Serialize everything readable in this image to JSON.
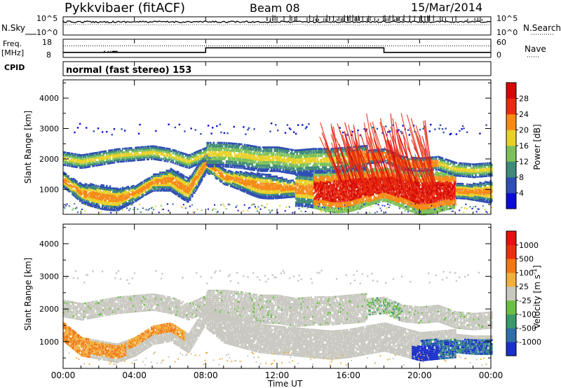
{
  "header": {
    "station": "Pykkvibaer (fitACF)",
    "beam": "Beam 08",
    "date": "15/Mar/2014"
  },
  "noise_panel": {
    "left_label": "N.Sky",
    "left_ticks": [
      "10^5",
      "10^0"
    ],
    "right_ticks": [
      "10^5",
      "10^0"
    ],
    "right_label": "N.Search"
  },
  "freq_panel": {
    "left_label_1": "Freq.",
    "left_label_2": "[MHz]",
    "left_ticks": [
      "18",
      "8"
    ],
    "right_ticks": [
      "60",
      "0"
    ],
    "right_label": "Nave",
    "freq_steps": [
      {
        "t0": 0,
        "t1": 8,
        "value": 10.0
      },
      {
        "t0": 8,
        "t1": 18,
        "value": 12.5
      },
      {
        "t0": 18,
        "t1": 24,
        "value": 10.0
      }
    ],
    "nave_level": 38
  },
  "cpid": {
    "label": "CPID",
    "text": "normal (fast stereo) 153"
  },
  "chart_data": [
    {
      "type": "heatmap",
      "name": "Power",
      "ylabel": "Slant Range [km]",
      "ylim": [
        180,
        4600
      ],
      "yticks": [
        "1000",
        "2000",
        "3000",
        "4000"
      ],
      "colorbar_label": "Power [dB]",
      "colorbar_ticks": [
        "28",
        "24",
        "20",
        "16",
        "12",
        "8",
        "4"
      ],
      "colorbar_colors": [
        "#0b0bd6",
        "#2f4fb4",
        "#3f8a78",
        "#7cc05a",
        "#e8d028",
        "#f58a18",
        "#e82c10",
        "#d40808"
      ],
      "colorbar_range": [
        0,
        32
      ],
      "echo_bands": [
        {
          "label": "lower band",
          "t": [
            0,
            1,
            2,
            3,
            4,
            5,
            6,
            7,
            8,
            9,
            10,
            11,
            12,
            13,
            14,
            15,
            16,
            17,
            18,
            19,
            20,
            21,
            22,
            23,
            24
          ],
          "range": [
            1350,
            900,
            800,
            700,
            900,
            1250,
            1350,
            1000,
            1900,
            1450,
            1300,
            1150,
            1100,
            1050,
            1000,
            950,
            1000,
            1100,
            1200,
            1050,
            900,
            950,
            1000,
            950,
            950
          ]
        },
        {
          "label": "upper band",
          "t": [
            0,
            1,
            2,
            3,
            4,
            5,
            6,
            7,
            8,
            9,
            10,
            11,
            12,
            13,
            14,
            15,
            16,
            17,
            18,
            19,
            20,
            21,
            22,
            23,
            24
          ],
          "range": [
            2050,
            1950,
            2050,
            2150,
            2200,
            2250,
            2150,
            1950,
            2200,
            2200,
            2150,
            2050,
            2050,
            1950,
            2000,
            2000,
            2050,
            2100,
            2150,
            1900,
            1850,
            1900,
            1700,
            1650,
            1700
          ]
        }
      ]
    },
    {
      "type": "heatmap",
      "name": "Velocity",
      "ylabel": "Slant Range [km]",
      "ylim": [
        180,
        4600
      ],
      "yticks": [
        "1000",
        "2000",
        "3000",
        "4000"
      ],
      "colorbar_label": "Velocity [m s^-1]",
      "colorbar_ticks": [
        "1000",
        "500",
        "100",
        "25",
        "-25",
        "-100",
        "-500",
        "-1000"
      ],
      "colorbar_colors": [
        "#1a2fc8",
        "#2f6ea8",
        "#3a9a6a",
        "#6ac040",
        "#c8c8c0",
        "#f0b040",
        "#f07818",
        "#e83010",
        "#e81010"
      ],
      "xlabel": "Time UT",
      "xticks": [
        "00:00",
        "04:00",
        "08:00",
        "12:00",
        "16:00",
        "20:00",
        "00:00"
      ],
      "xlim": [
        0,
        24
      ]
    }
  ],
  "colors": {
    "frame": "#000000",
    "ground_scatter": "#c6c6c0"
  }
}
